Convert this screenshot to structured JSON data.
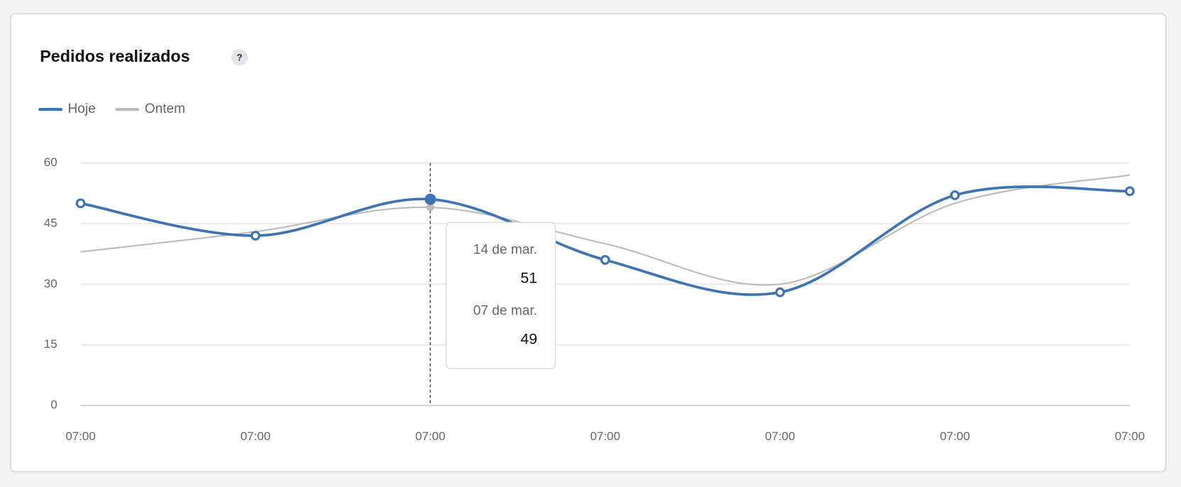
{
  "chart_data": {
    "type": "line",
    "title": "Pedidos realizados",
    "help_icon": "?",
    "categories": [
      "07:00",
      "07:00",
      "07:00",
      "07:00",
      "07:00",
      "07:00",
      "07:00"
    ],
    "series": [
      {
        "name": "Hoje",
        "color": "#3e74b3",
        "values": [
          50,
          42,
          51,
          36,
          28,
          52,
          53
        ]
      },
      {
        "name": "Ontem",
        "color": "#bbbbbb",
        "values": [
          38,
          43,
          49,
          40,
          30,
          50,
          57
        ]
      }
    ],
    "ylim": [
      0,
      60
    ],
    "yticks": [
      0,
      15,
      30,
      45,
      60
    ],
    "grid": true,
    "legend": "top-left",
    "tooltip": {
      "index": 2,
      "labels": [
        "14 de mar.",
        "07 de mar."
      ]
    }
  }
}
